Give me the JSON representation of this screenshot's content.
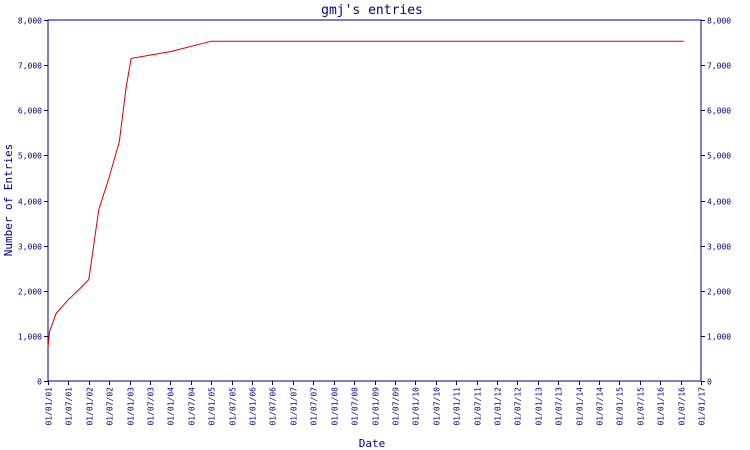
{
  "colors": {
    "axis": "#00007f",
    "series": "#d40000",
    "background": "#ffffff"
  },
  "chart_data": {
    "type": "line",
    "title": "gmj's entries",
    "xlabel": "Date",
    "ylabel": "Number of Entries",
    "ylim": [
      0,
      8000
    ],
    "grid": false,
    "y_ticks": [
      0,
      1000,
      2000,
      3000,
      4000,
      5000,
      6000,
      7000,
      8000
    ],
    "y_tick_labels": [
      "0",
      "1,000",
      "2,000",
      "3,000",
      "4,000",
      "5,000",
      "6,000",
      "7,000",
      "8,000"
    ],
    "x_tick_labels": [
      "01/01/01",
      "01/07/01",
      "01/01/02",
      "01/07/02",
      "01/01/03",
      "01/07/03",
      "01/01/04",
      "01/07/04",
      "01/01/05",
      "01/07/05",
      "01/01/06",
      "01/07/06",
      "01/01/07",
      "01/07/07",
      "01/01/08",
      "01/07/08",
      "01/01/09",
      "01/07/09",
      "01/01/10",
      "01/07/10",
      "01/01/11",
      "01/07/11",
      "01/01/12",
      "01/07/12",
      "01/01/13",
      "01/07/13",
      "01/01/14",
      "01/07/14",
      "01/01/15",
      "01/07/15",
      "01/01/16",
      "01/07/16",
      "01/01/17"
    ],
    "series": [
      {
        "x": [
          "2001-01-01",
          "2001-01-15",
          "2001-03-15",
          "2001-07-01",
          "2001-10-15",
          "2002-01-01",
          "2002-04-01",
          "2002-07-01",
          "2002-10-01",
          "2002-12-01",
          "2003-01-15",
          "2004-01-01",
          "2005-01-01",
          "2010-01-01",
          "2016-07-31"
        ],
        "y": [
          750,
          1100,
          1500,
          1800,
          2050,
          2250,
          3800,
          4500,
          5300,
          6500,
          7150,
          7300,
          7530,
          7530,
          7530
        ]
      }
    ]
  }
}
